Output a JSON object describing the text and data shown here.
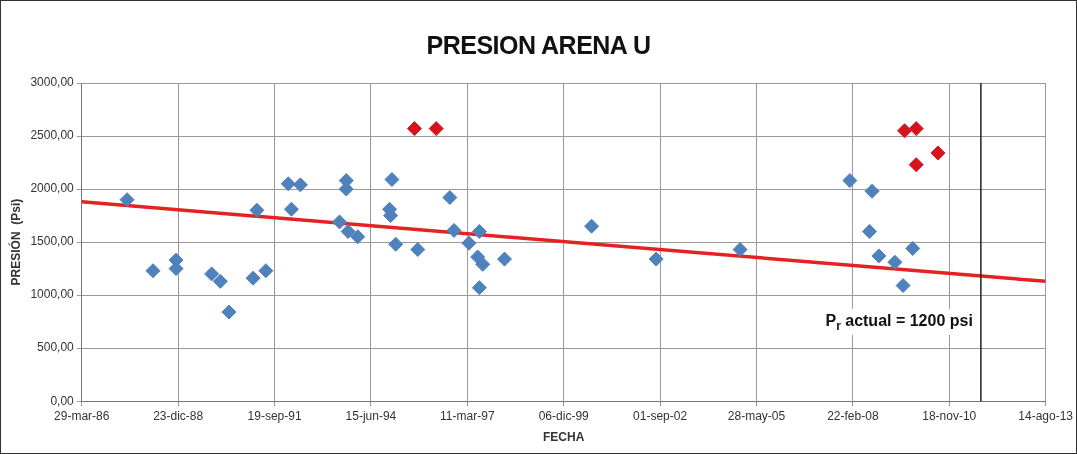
{
  "chart_data": {
    "type": "scatter",
    "title": "PRESION ARENA U",
    "xlabel": "FECHA",
    "ylabel": "PRESIÓN  (Psi)",
    "marker": "diamond",
    "grid": true,
    "legend": false,
    "xlim": [
      "1986-03-29",
      "2013-08-14"
    ],
    "xticks": [
      {
        "value": "1986-03-29",
        "label": "29-mar-86"
      },
      {
        "value": "1988-12-23",
        "label": "23-dic-88"
      },
      {
        "value": "1991-09-19",
        "label": "19-sep-91"
      },
      {
        "value": "1994-06-15",
        "label": "15-jun-94"
      },
      {
        "value": "1997-03-11",
        "label": "11-mar-97"
      },
      {
        "value": "1999-12-06",
        "label": "06-dic-99"
      },
      {
        "value": "2002-09-01",
        "label": "01-sep-02"
      },
      {
        "value": "2005-05-28",
        "label": "28-may-05"
      },
      {
        "value": "2008-02-22",
        "label": "22-feb-08"
      },
      {
        "value": "2010-11-18",
        "label": "18-nov-10"
      },
      {
        "value": "2013-08-14",
        "label": "14-ago-13"
      }
    ],
    "ylim": [
      0,
      3000
    ],
    "yticks": [
      {
        "value": 0,
        "label": "0,00"
      },
      {
        "value": 500,
        "label": "500,00"
      },
      {
        "value": 1000,
        "label": "1000,00"
      },
      {
        "value": 1500,
        "label": "1500,00"
      },
      {
        "value": 2000,
        "label": "2000,00"
      },
      {
        "value": 2500,
        "label": "2500,00"
      },
      {
        "value": 3000,
        "label": "3000,00"
      }
    ],
    "series": [
      {
        "color": "#4f81bd",
        "x": [
          "1987-07-12",
          "1988-04-06",
          "1988-12-01",
          "1988-12-01",
          "1989-12-05",
          "1990-03-05",
          "1990-06-03",
          "1991-02-08",
          "1991-03-20",
          "1991-06-21",
          "1992-02-08",
          "1992-03-12",
          "1992-06-13",
          "1993-07-24",
          "1993-10-02",
          "1993-10-02",
          "1993-10-21",
          "1994-01-29",
          "1994-12-25",
          "1995-01-05",
          "1995-01-19",
          "1995-02-27",
          "1995-10-14",
          "1996-09-11",
          "1996-10-24",
          "1997-03-28",
          "1997-07-14",
          "1997-06-26",
          "1997-08-18",
          "1997-07-14",
          "1998-04-01",
          "2000-09-20",
          "2002-07-22",
          "2004-12-09",
          "2008-01-22",
          "2008-09-08",
          "2008-08-13",
          "2008-11-18",
          "2009-05-03",
          "2009-07-27",
          "2009-11-04"
        ],
        "values": [
          1900,
          1230,
          1330,
          1250,
          1200,
          1130,
          840,
          1160,
          1800,
          1230,
          2050,
          1810,
          2040,
          1690,
          2080,
          2000,
          1600,
          1550,
          1810,
          1750,
          2090,
          1480,
          1430,
          1920,
          1610,
          1490,
          1600,
          1360,
          1290,
          1070,
          1340,
          1650,
          1340,
          1430,
          2080,
          1980,
          1600,
          1370,
          1310,
          1090,
          1440
        ]
      },
      {
        "color": "#d7141e",
        "x": [
          "1995-09-09",
          "1996-04-22",
          "2009-08-11",
          "2009-12-10",
          "2009-12-10",
          "2010-07-24"
        ],
        "values": [
          2570,
          2570,
          2550,
          2570,
          2230,
          2340
        ]
      },
      {
        "type": "line",
        "marker": "none",
        "color": "#e52222",
        "x": [
          "1986-03-29",
          "2013-08-14"
        ],
        "values": [
          1880,
          1130
        ]
      }
    ],
    "ref_lines": [
      {
        "axis": "x",
        "value": "2011-10-12",
        "label": "P$_{r}$ actual = 1200 psi",
        "color": "#222222"
      }
    ]
  }
}
